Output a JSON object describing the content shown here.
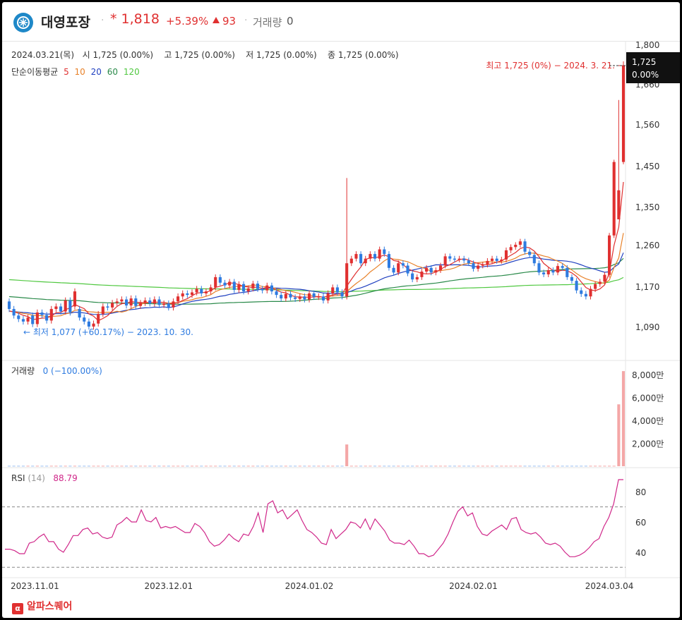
{
  "header": {
    "stock_name": "대영포장",
    "dot": "·",
    "price": "* 1,818",
    "change_pct": "+5.39%",
    "change_amount": "93",
    "volume_label": "거래량",
    "volume_value": "0"
  },
  "ohlc_bar": {
    "date": "2024.03.21(목)",
    "open_label": "시",
    "open": "1,725 (0.00%)",
    "high_label": "고",
    "high": "1,725 (0.00%)",
    "low_label": "저",
    "low": "1,725 (0.00%)",
    "close_label": "종",
    "close": "1,725 (0.00%)"
  },
  "ma_legend": {
    "title": "단순이동평균",
    "periods": [
      {
        "label": "5",
        "color": "#e03030"
      },
      {
        "label": "10",
        "color": "#e8822a"
      },
      {
        "label": "20",
        "color": "#2040c0"
      },
      {
        "label": "60",
        "color": "#2a8a4a"
      },
      {
        "label": "120",
        "color": "#50c840"
      }
    ]
  },
  "annotations": {
    "high": "최고 1,725 (0%) − 2024. 3. 21.",
    "low": "최저 1,077 (+60.17%) − 2023. 10. 30.",
    "current_price": "1,725",
    "current_pct": "0.00%"
  },
  "volume_panel": {
    "label": "거래량",
    "value": "0 (−100.00%)"
  },
  "rsi_panel": {
    "label": "RSI",
    "period": "(14)",
    "value": "88.79"
  },
  "brand": {
    "icon": "α",
    "name": "알파스퀘어"
  },
  "colors": {
    "up": "#e03030",
    "down": "#2e7be0",
    "vol_up": "#f4a7a7",
    "vol_down": "#9cc1f0",
    "rsi": "#d0288a"
  },
  "chart_data": [
    {
      "type": "candlestick",
      "x_ticks": [
        "2023.11.01",
        "2023.12.01",
        "2024.01.02",
        "2024.02.01",
        "2024.03.04"
      ],
      "x_tick_index": [
        0,
        34,
        64,
        99,
        128
      ],
      "y_ticks": [
        "1,800",
        "1,660",
        "1,560",
        "1,450",
        "1,350",
        "1,260",
        "1,170",
        "1,090"
      ],
      "y_tick_values": [
        1800,
        1660,
        1560,
        1450,
        1350,
        1260,
        1170,
        1090
      ],
      "ylim": [
        1030,
        1800
      ],
      "series_close": [
        1125,
        1112,
        1105,
        1100,
        1108,
        1095,
        1118,
        1113,
        1102,
        1125,
        1130,
        1120,
        1142,
        1118,
        1160,
        1108,
        1100,
        1090,
        1096,
        1115,
        1130,
        1128,
        1137,
        1140,
        1144,
        1132,
        1146,
        1131,
        1137,
        1142,
        1136,
        1144,
        1133,
        1136,
        1128,
        1140,
        1150,
        1156,
        1153,
        1158,
        1165,
        1156,
        1160,
        1168,
        1190,
        1178,
        1172,
        1180,
        1163,
        1175,
        1160,
        1166,
        1176,
        1165,
        1162,
        1172,
        1160,
        1153,
        1146,
        1155,
        1148,
        1145,
        1150,
        1144,
        1156,
        1149,
        1150,
        1142,
        1156,
        1168,
        1158,
        1150,
        1220,
        1230,
        1240,
        1220,
        1230,
        1240,
        1230,
        1250,
        1240,
        1210,
        1200,
        1220,
        1215,
        1198,
        1185,
        1190,
        1202,
        1210,
        1200,
        1205,
        1215,
        1235,
        1230,
        1228,
        1230,
        1226,
        1220,
        1208,
        1215,
        1217,
        1225,
        1230,
        1225,
        1228,
        1248,
        1255,
        1260,
        1268,
        1245,
        1238,
        1220,
        1200,
        1196,
        1205,
        1200,
        1214,
        1210,
        1190,
        1182,
        1162,
        1155,
        1150,
        1165,
        1175,
        1180,
        1195,
        1282,
        1460,
        1390,
        1725
      ],
      "series_open": [
        1140,
        1125,
        1112,
        1105,
        1100,
        1112,
        1095,
        1118,
        1113,
        1102,
        1125,
        1130,
        1120,
        1142,
        1130,
        1125,
        1108,
        1100,
        1090,
        1096,
        1115,
        1130,
        1128,
        1137,
        1140,
        1144,
        1132,
        1146,
        1131,
        1137,
        1142,
        1136,
        1144,
        1133,
        1136,
        1128,
        1140,
        1150,
        1156,
        1153,
        1158,
        1165,
        1156,
        1160,
        1168,
        1190,
        1178,
        1172,
        1180,
        1163,
        1175,
        1160,
        1166,
        1176,
        1165,
        1162,
        1172,
        1160,
        1153,
        1146,
        1155,
        1148,
        1145,
        1150,
        1144,
        1156,
        1149,
        1150,
        1142,
        1156,
        1168,
        1158,
        1150,
        1220,
        1230,
        1240,
        1220,
        1230,
        1240,
        1230,
        1250,
        1240,
        1210,
        1200,
        1220,
        1215,
        1198,
        1185,
        1190,
        1202,
        1210,
        1200,
        1205,
        1215,
        1235,
        1230,
        1228,
        1230,
        1226,
        1220,
        1208,
        1215,
        1217,
        1225,
        1230,
        1225,
        1228,
        1248,
        1255,
        1260,
        1268,
        1245,
        1238,
        1220,
        1200,
        1196,
        1205,
        1200,
        1214,
        1210,
        1190,
        1182,
        1162,
        1155,
        1150,
        1165,
        1175,
        1180,
        1195,
        1282,
        1320,
        1460
      ],
      "volume_spikes": [
        {
          "index": 72,
          "value": 1900
        },
        {
          "index": 130,
          "value": 5400
        },
        {
          "index": 131,
          "value": 8300
        }
      ],
      "volume_ticks": [
        "8,000만",
        "6,000만",
        "4,000만",
        "2,000만"
      ],
      "volume_tick_values": [
        8000,
        6000,
        4000,
        2000
      ]
    },
    {
      "type": "line",
      "title": "RSI (14)",
      "y_ticks": [
        "80",
        "60",
        "40"
      ],
      "y_tick_values": [
        80,
        60,
        40
      ],
      "reference_lines": [
        70,
        30
      ],
      "ylim": [
        25,
        95
      ],
      "values": [
        42,
        42,
        41,
        39,
        39,
        46,
        47,
        50,
        52,
        47,
        47,
        42,
        40,
        45,
        51,
        51,
        55,
        56,
        52,
        53,
        50,
        49,
        50,
        58,
        60,
        63,
        60,
        60,
        68,
        61,
        60,
        63,
        56,
        57,
        56,
        57,
        55,
        53,
        53,
        59,
        57,
        53,
        47,
        44,
        45,
        48,
        52,
        49,
        47,
        52,
        51,
        57,
        66,
        53,
        72,
        74,
        66,
        68,
        62,
        65,
        68,
        61,
        55,
        53,
        50,
        46,
        45,
        55,
        49,
        52,
        55,
        60,
        59,
        56,
        62,
        55,
        62,
        58,
        54,
        48,
        46,
        46,
        45,
        48,
        44,
        39,
        39,
        37,
        38,
        42,
        46,
        52,
        60,
        67,
        70,
        64,
        66,
        57,
        52,
        51,
        54,
        56,
        58,
        55,
        62,
        63,
        55,
        53,
        52,
        53,
        50,
        46,
        45,
        46,
        44,
        40,
        37,
        37,
        38,
        40,
        43,
        47,
        49,
        57,
        63,
        72,
        88,
        88
      ],
      "rsi_index_offset": 0
    }
  ]
}
